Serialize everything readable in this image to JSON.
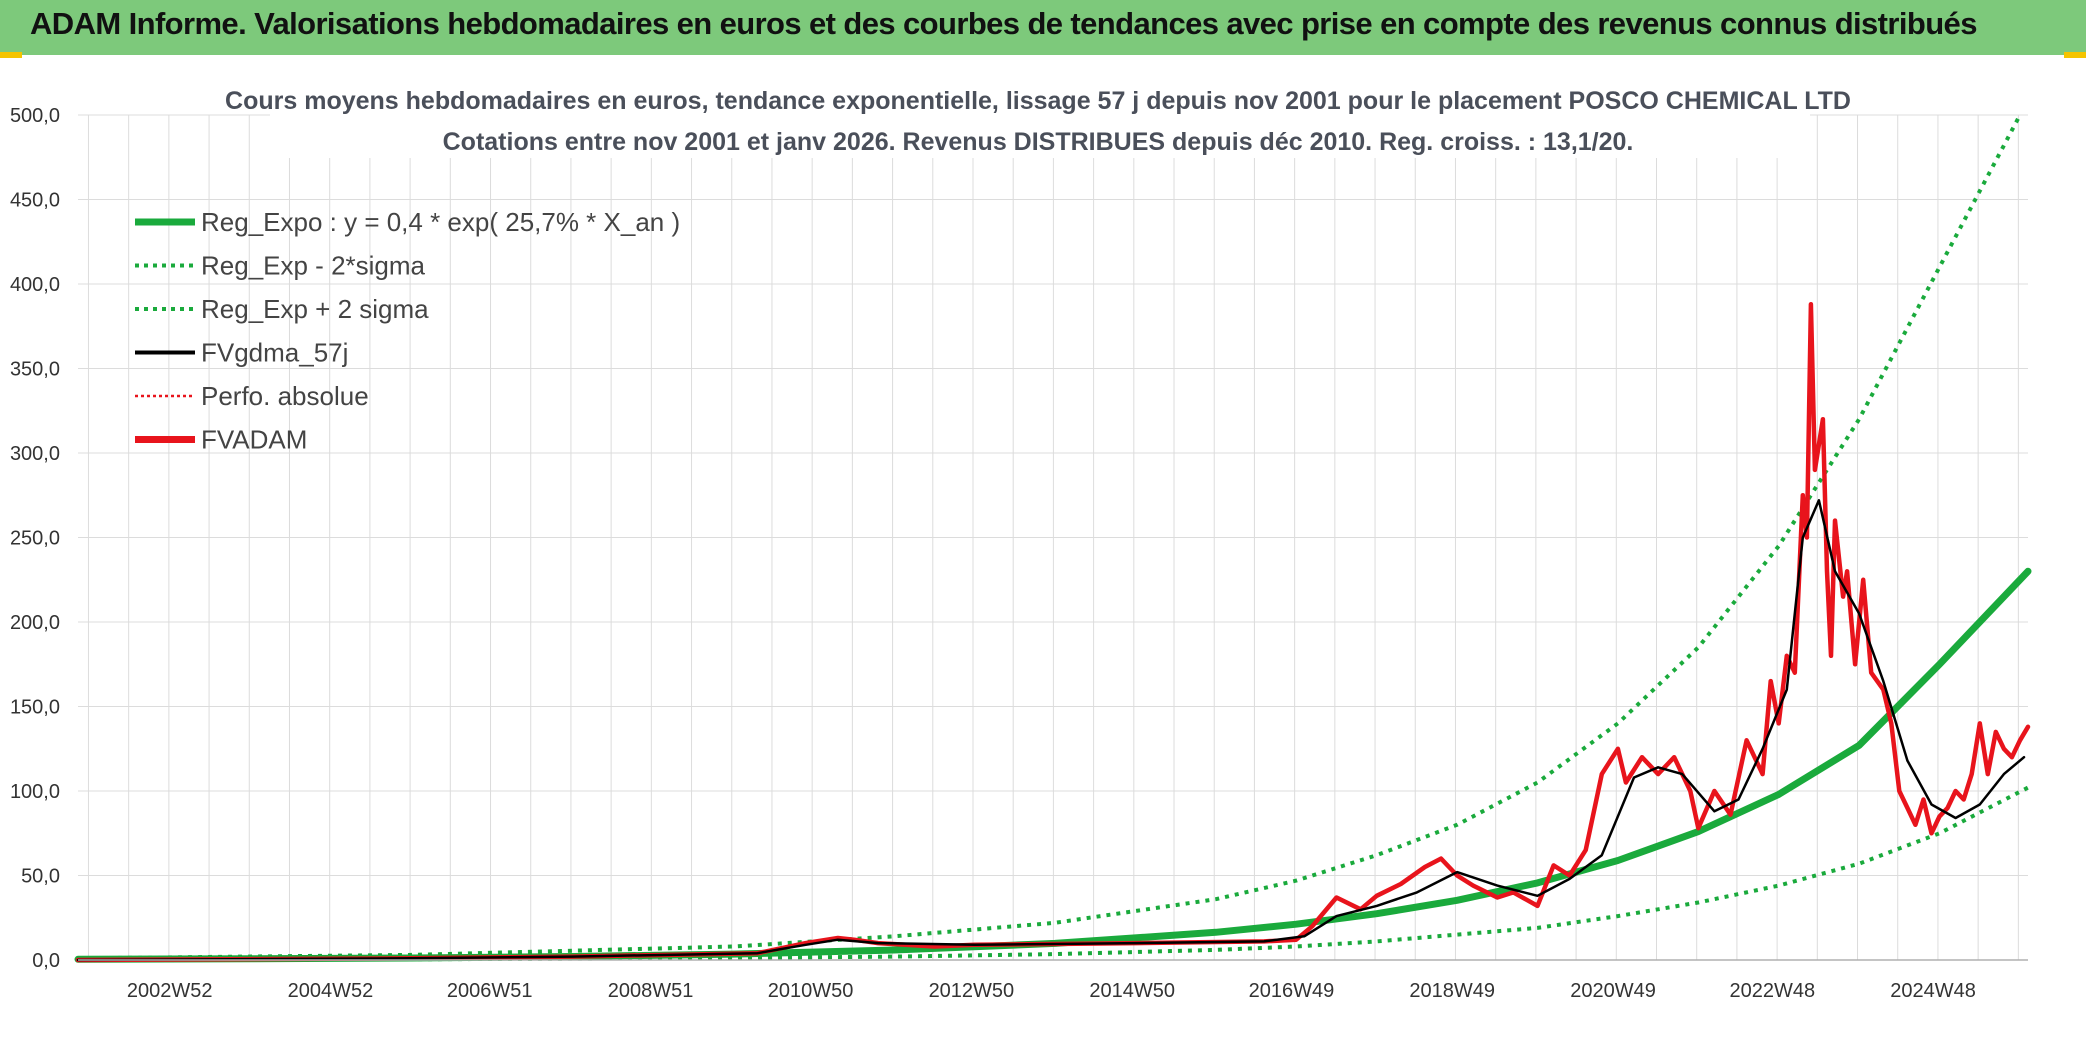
{
  "header": {
    "title": "ADAM Informe. Valorisations hebdomadaires en euros et des courbes de tendances avec prise en compte des revenus connus distribués"
  },
  "colors": {
    "banner": "#7dc97b",
    "reg_expo": "#1aaa3c",
    "fvgdma": "#000000",
    "fvadam": "#e8141c",
    "perfo": "#e8141c",
    "grid": "#dcdcdc"
  },
  "chart_data": {
    "type": "line",
    "title_line1": "Cours moyens hebdomadaires en euros, tendance exponentielle, lissage 57 j depuis nov 2001 pour le placement POSCO CHEMICAL LTD",
    "title_line2": "Cotations entre nov 2001 et janv 2026. Revenus DISTRIBUES depuis déc 2010. Reg. croiss. : 13,1/20.",
    "ylim": [
      0,
      500
    ],
    "y_ticks": [
      "0,0",
      "50,0",
      "100,0",
      "150,0",
      "200,0",
      "250,0",
      "300,0",
      "350,0",
      "400,0",
      "450,0",
      "500,0"
    ],
    "x_range": [
      2001.85,
      2026.1
    ],
    "x_ticks": [
      {
        "label": "2002W52",
        "x": 2002.99
      },
      {
        "label": "2004W52",
        "x": 2004.99
      },
      {
        "label": "2006W51",
        "x": 2006.97
      },
      {
        "label": "2008W51",
        "x": 2008.97
      },
      {
        "label": "2010W50",
        "x": 2010.96
      },
      {
        "label": "2012W50",
        "x": 2012.96
      },
      {
        "label": "2014W50",
        "x": 2014.96
      },
      {
        "label": "2016W49",
        "x": 2016.94
      },
      {
        "label": "2018W49",
        "x": 2018.94
      },
      {
        "label": "2020W49",
        "x": 2020.94
      },
      {
        "label": "2022W48",
        "x": 2022.92
      },
      {
        "label": "2024W48",
        "x": 2024.92
      }
    ],
    "grid": true,
    "legend_position": "top-left",
    "legend": [
      {
        "name": "Reg_Expo : y = 0,4 * exp( 25,7% *  X_an )",
        "style": "solid-thick",
        "color": "#1aaa3c"
      },
      {
        "name": "Reg_Exp - 2*sigma",
        "style": "dotted",
        "color": "#1aaa3c"
      },
      {
        "name": "Reg_Exp + 2 sigma",
        "style": "dotted",
        "color": "#1aaa3c"
      },
      {
        "name": "FVgdma_57j",
        "style": "solid-thin",
        "color": "#000000"
      },
      {
        "name": "Perfo. absolue",
        "style": "dotted-thin",
        "color": "#e8141c"
      },
      {
        "name": "FVADAM",
        "style": "solid-thick",
        "color": "#e8141c"
      }
    ],
    "series": [
      {
        "name": "Reg_Expo : y = 0,4 * exp( 25,7% *  X_an )",
        "x": [
          2001.85,
          2004,
          2006,
          2008,
          2010,
          2012,
          2014,
          2016,
          2017,
          2018,
          2019,
          2020,
          2021,
          2022,
          2023,
          2024,
          2025,
          2026.1
        ],
        "values": [
          0.4,
          0.7,
          1.2,
          2.1,
          3.5,
          5.9,
          9.8,
          16.4,
          21.2,
          27.4,
          35.3,
          45.6,
          58.9,
          76,
          98,
          127,
          175,
          230
        ]
      },
      {
        "name": "Reg_Exp - 2*sigma",
        "x": [
          2001.85,
          2006,
          2010,
          2012,
          2014,
          2016,
          2017,
          2018,
          2019,
          2020,
          2021,
          2022,
          2023,
          2024,
          2025,
          2026.1
        ],
        "values": [
          0.1,
          0.4,
          1.2,
          2,
          3.5,
          6,
          8,
          11,
          15,
          19,
          26,
          34,
          44,
          57,
          75,
          102
        ]
      },
      {
        "name": "Reg_Exp + 2 sigma",
        "x": [
          2001.85,
          2006,
          2010,
          2012,
          2014,
          2016,
          2017,
          2018,
          2019,
          2020,
          2021,
          2022,
          2023,
          2024,
          2025,
          2026
        ],
        "values": [
          1,
          3,
          8,
          14,
          22,
          36,
          47,
          62,
          80,
          105,
          140,
          185,
          245,
          320,
          410,
          500
        ]
      },
      {
        "name": "FVgdma_57j",
        "x": [
          2001.85,
          2006,
          2008,
          2010.3,
          2010.9,
          2011.3,
          2011.8,
          2013,
          2015,
          2016.6,
          2017.1,
          2017.5,
          2018,
          2018.5,
          2019,
          2019.5,
          2020,
          2020.4,
          2020.8,
          2021.2,
          2021.5,
          2021.8,
          2022.2,
          2022.5,
          2022.8,
          2023.1,
          2023.3,
          2023.5,
          2023.7,
          2024,
          2024.3,
          2024.6,
          2024.9,
          2025.2,
          2025.5,
          2025.8,
          2026.05
        ],
        "values": [
          0,
          1,
          2,
          4,
          9,
          12,
          10,
          9,
          10,
          11,
          14,
          26,
          32,
          40,
          52,
          44,
          38,
          48,
          62,
          108,
          114,
          110,
          88,
          95,
          125,
          160,
          250,
          272,
          230,
          205,
          165,
          118,
          92,
          84,
          92,
          110,
          120
        ]
      },
      {
        "name": "FVADAM",
        "x": [
          2001.85,
          2006,
          2008,
          2010.3,
          2010.9,
          2011.3,
          2011.5,
          2011.8,
          2012.5,
          2013,
          2015,
          2016.6,
          2017,
          2017.2,
          2017.5,
          2017.8,
          2018,
          2018.3,
          2018.6,
          2018.8,
          2019,
          2019.2,
          2019.5,
          2019.7,
          2020,
          2020.2,
          2020.4,
          2020.6,
          2020.8,
          2021,
          2021.1,
          2021.3,
          2021.5,
          2021.7,
          2021.9,
          2022,
          2022.2,
          2022.4,
          2022.6,
          2022.8,
          2022.9,
          2023,
          2023.1,
          2023.2,
          2023.3,
          2023.35,
          2023.4,
          2023.45,
          2023.55,
          2023.6,
          2023.65,
          2023.7,
          2023.8,
          2023.85,
          2023.95,
          2024.05,
          2024.15,
          2024.3,
          2024.4,
          2024.5,
          2024.6,
          2024.7,
          2024.8,
          2024.9,
          2025,
          2025.1,
          2025.2,
          2025.3,
          2025.4,
          2025.5,
          2025.6,
          2025.7,
          2025.8,
          2025.9,
          2026,
          2026.1
        ],
        "values": [
          0,
          1,
          2,
          4,
          10,
          13,
          12,
          10,
          8,
          9,
          10,
          11,
          12,
          20,
          37,
          30,
          38,
          45,
          55,
          60,
          50,
          44,
          37,
          40,
          32,
          56,
          50,
          65,
          110,
          125,
          105,
          120,
          110,
          120,
          100,
          78,
          100,
          86,
          130,
          110,
          165,
          140,
          180,
          170,
          275,
          250,
          388,
          290,
          320,
          230,
          180,
          260,
          215,
          230,
          175,
          225,
          170,
          160,
          140,
          100,
          90,
          80,
          95,
          75,
          85,
          90,
          100,
          95,
          110,
          140,
          110,
          135,
          125,
          120,
          130,
          138
        ]
      }
    ]
  }
}
